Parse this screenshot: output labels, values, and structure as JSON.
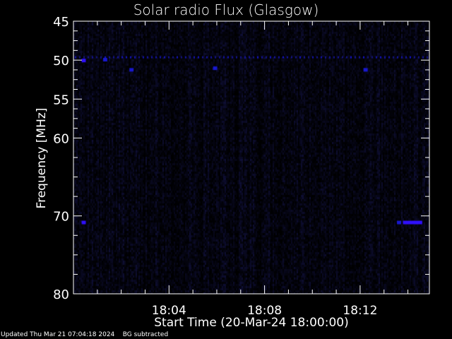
{
  "chart_data": {
    "type": "heatmap",
    "title": "Solar radio Flux (Glasgow)",
    "xlabel": "Start Time (20-Mar-24 18:00:00)",
    "ylabel": "Frequency [MHz]",
    "x_range_minutes_after_1800": [
      0,
      14.9
    ],
    "x_ticks": [
      {
        "value": 4,
        "label": "18:04"
      },
      {
        "value": 8,
        "label": "18:08"
      },
      {
        "value": 12,
        "label": "18:12"
      }
    ],
    "ylim": [
      45,
      80
    ],
    "y_inverted": true,
    "y_ticks": [
      {
        "value": 45,
        "label": "45"
      },
      {
        "value": 50,
        "label": "50"
      },
      {
        "value": 55,
        "label": "55"
      },
      {
        "value": 60,
        "label": "60"
      },
      {
        "value": 70,
        "label": "70"
      },
      {
        "value": 80,
        "label": "80"
      }
    ],
    "background_color": "#00001a",
    "colormap": [
      "#000000",
      "#0a0a40",
      "#1010a0",
      "#2020ff",
      "#8000ff"
    ],
    "interference_band_mhz": 49.5,
    "bright_spots": [
      {
        "minute": 0.4,
        "freq": 50.0,
        "intensity": 0.9
      },
      {
        "minute": 1.3,
        "freq": 49.9,
        "intensity": 0.7
      },
      {
        "minute": 2.4,
        "freq": 51.2,
        "intensity": 0.7
      },
      {
        "minute": 5.9,
        "freq": 51.0,
        "intensity": 0.7
      },
      {
        "minute": 12.2,
        "freq": 51.2,
        "intensity": 0.6
      },
      {
        "minute": 0.4,
        "freq": 70.8,
        "intensity": 0.9
      },
      {
        "minute": 13.6,
        "freq": 70.8,
        "intensity": 0.8
      },
      {
        "minute": 13.85,
        "freq": 70.8,
        "intensity": 0.9,
        "minute_end": 14.6
      }
    ]
  },
  "footer": {
    "updated": "Updated Thu Mar 21 07:04:18 2024",
    "bg": "BG subtracted"
  }
}
